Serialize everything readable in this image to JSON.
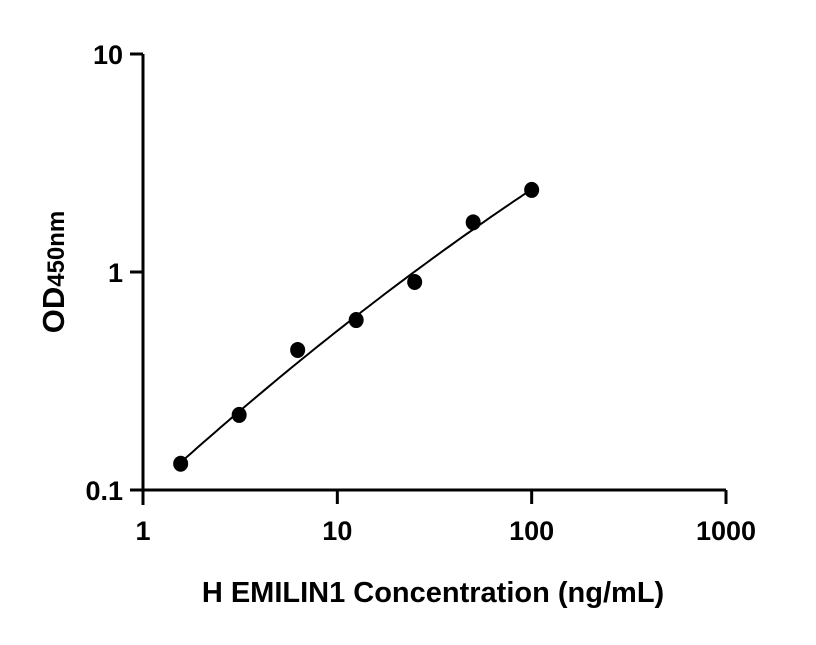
{
  "chart_data": {
    "type": "scatter",
    "title": "",
    "xlabel": "H EMILIN1 Concentration (ng/mL)",
    "ylabel_main": "OD",
    "ylabel_sub": "450nm",
    "x_scale": "log",
    "y_scale": "log",
    "xlim": [
      1,
      1000
    ],
    "ylim": [
      0.1,
      10
    ],
    "x_ticks": [
      "1",
      "10",
      "100",
      "1000"
    ],
    "y_ticks": [
      "0.1",
      "1",
      "10"
    ],
    "grid": false,
    "fit_curve": true,
    "marker_color": "#000000",
    "series": [
      {
        "x": [
          1.5625,
          3.125,
          6.25,
          12.5,
          25,
          50,
          100
        ],
        "y": [
          0.132,
          0.221,
          0.439,
          0.602,
          0.9,
          1.69,
          2.38
        ]
      }
    ]
  }
}
